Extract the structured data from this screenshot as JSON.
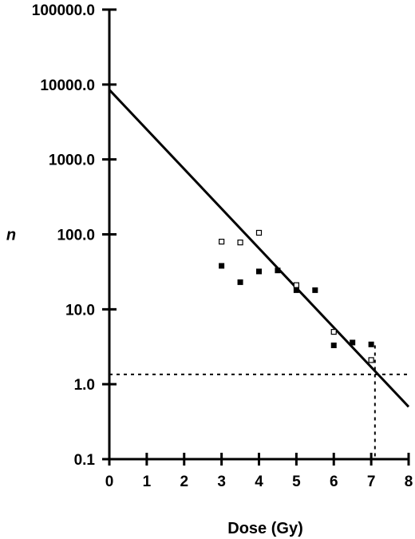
{
  "chart_data": {
    "type": "scatter",
    "xlabel": "Dose (Gy)",
    "ylabel": "n",
    "xlim": [
      0,
      8
    ],
    "ylim": [
      0.1,
      100000
    ],
    "y_scale": "log",
    "grid": false,
    "legend": "none",
    "x_ticks": [
      0,
      1,
      2,
      3,
      4,
      5,
      6,
      7,
      8
    ],
    "x_tick_labels": [
      "0",
      "1",
      "2",
      "3",
      "4",
      "5",
      "6",
      "7",
      "8"
    ],
    "y_ticks": [
      0.1,
      1,
      10,
      100,
      1000,
      10000,
      100000
    ],
    "y_tick_labels": [
      "0.1",
      "1.0",
      "10.0",
      "100.0",
      "1000.0",
      "10000.0",
      "100000.0"
    ],
    "series": [
      {
        "marker": "filled-square",
        "color": "#000000",
        "points": [
          {
            "x": 3.0,
            "y": 38
          },
          {
            "x": 3.5,
            "y": 23
          },
          {
            "x": 4.0,
            "y": 32
          },
          {
            "x": 4.5,
            "y": 33
          },
          {
            "x": 5.0,
            "y": 18
          },
          {
            "x": 5.5,
            "y": 18
          },
          {
            "x": 6.0,
            "y": 3.3
          },
          {
            "x": 6.5,
            "y": 3.6
          },
          {
            "x": 7.0,
            "y": 3.4
          }
        ]
      },
      {
        "marker": "open-square",
        "color": "#000000",
        "points": [
          {
            "x": 3.0,
            "y": 80
          },
          {
            "x": 3.5,
            "y": 78
          },
          {
            "x": 4.0,
            "y": 105
          },
          {
            "x": 5.0,
            "y": 21
          },
          {
            "x": 6.0,
            "y": 5.0
          },
          {
            "x": 7.0,
            "y": 2.1
          }
        ]
      }
    ],
    "fit_line": {
      "style": "solid",
      "from": {
        "x": 0,
        "y": 8500
      },
      "to": {
        "x": 8,
        "y": 0.5
      }
    },
    "reference_lines": [
      {
        "orientation": "horizontal",
        "style": "dotted",
        "y": 1.35
      },
      {
        "orientation": "vertical",
        "style": "dotted",
        "x": 7.1,
        "y_top": 3.3
      }
    ]
  }
}
